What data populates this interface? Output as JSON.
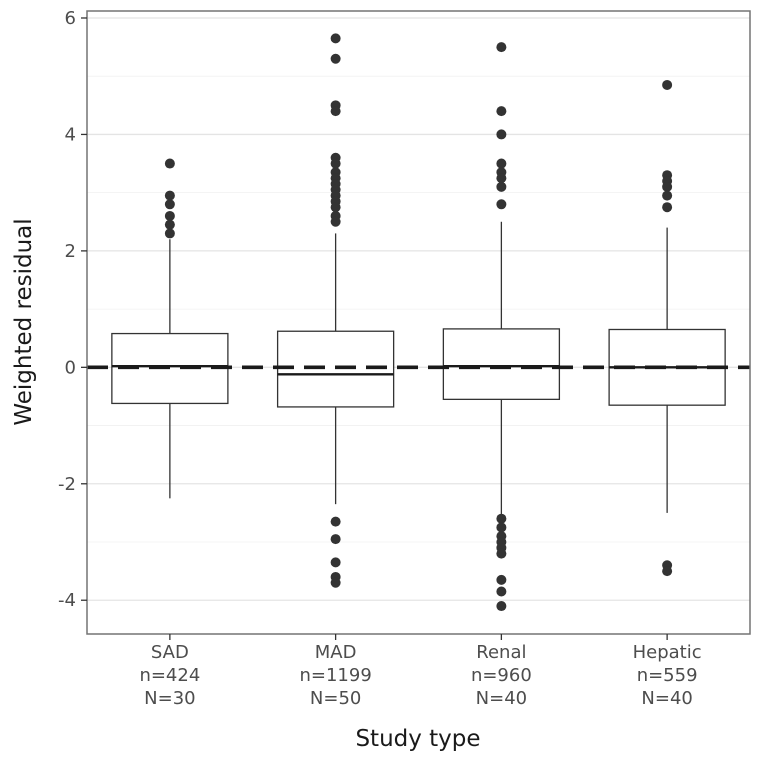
{
  "figure": {
    "background": "#ffffff",
    "panel_border_color": "#737373",
    "grid_major_color": "#e4e4e4",
    "grid_minor_color": "#f1f1f1",
    "tick_text_color": "#4d4d4d",
    "title_text_color": "#1a1a1a",
    "box_stroke_color": "#333333",
    "point_color": "#333333"
  },
  "chart_data": {
    "type": "boxplot",
    "title": "",
    "xlabel": "Study type",
    "ylabel": "Weighted residual",
    "ylim": [
      -4.58,
      6.12
    ],
    "yticks": [
      -4,
      -2,
      0,
      2,
      4,
      6
    ],
    "grid": true,
    "reference_line": {
      "y": 0,
      "style": "dashed",
      "color": "#1a1a1a"
    },
    "categories": [
      {
        "label": "SAD",
        "n_line": "n=424",
        "N_line": "N=30",
        "whisker_low": -2.25,
        "q1": -0.62,
        "median": 0.02,
        "q3": 0.58,
        "whisker_high": 2.2,
        "outliers": [
          2.3,
          2.45,
          2.6,
          2.8,
          2.95,
          3.5
        ]
      },
      {
        "label": "MAD",
        "n_line": "n=1199",
        "N_line": "N=50",
        "whisker_low": -2.35,
        "q1": -0.68,
        "median": -0.12,
        "q3": 0.62,
        "whisker_high": 2.3,
        "outliers": [
          5.65,
          5.3,
          4.5,
          4.4,
          3.6,
          3.5,
          3.35,
          3.25,
          3.15,
          3.05,
          2.95,
          2.85,
          2.75,
          2.6,
          2.5,
          -2.65,
          -2.95,
          -3.35,
          -3.6,
          -3.7
        ]
      },
      {
        "label": "Renal",
        "n_line": "n=960",
        "N_line": "N=40",
        "whisker_low": -2.55,
        "q1": -0.55,
        "median": 0.02,
        "q3": 0.66,
        "whisker_high": 2.5,
        "outliers": [
          5.5,
          4.4,
          4.0,
          3.5,
          3.35,
          3.25,
          3.1,
          2.8,
          -2.6,
          -2.75,
          -2.9,
          -3.0,
          -3.1,
          -3.2,
          -3.65,
          -3.85,
          -4.1
        ]
      },
      {
        "label": "Hepatic",
        "n_line": "n=559",
        "N_line": "N=40",
        "whisker_low": -2.5,
        "q1": -0.65,
        "median": 0.0,
        "q3": 0.65,
        "whisker_high": 2.4,
        "outliers": [
          4.85,
          3.3,
          3.2,
          3.1,
          2.95,
          2.75,
          -3.4,
          -3.5
        ]
      }
    ]
  }
}
